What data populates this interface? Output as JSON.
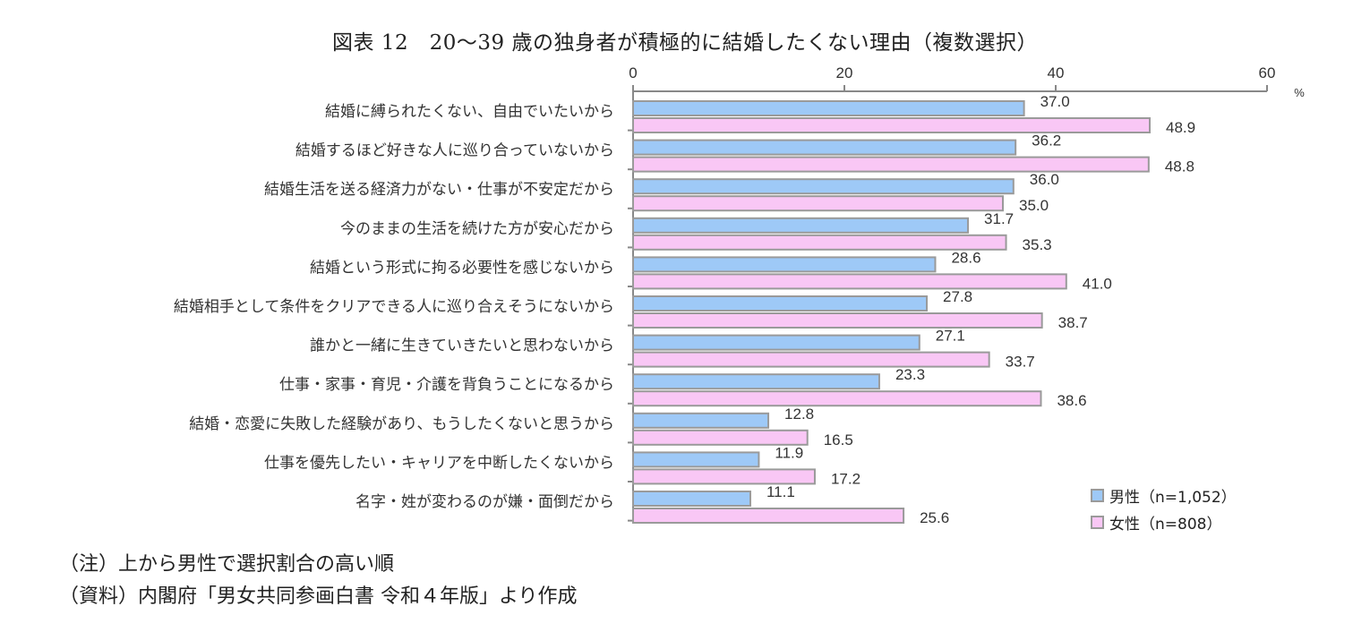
{
  "title": "図表 12　20～39 歳の独身者が積極的に結婚したくない理由（複数選択）",
  "notes": [
    "（注）上から男性で選択割合の高い順",
    "（資料）内閣府「男女共同参画白書 令和４年版」より作成"
  ],
  "colors": {
    "male": "#9ec9f7",
    "female": "#f9c7f5",
    "stroke": "#9a9a9a"
  },
  "chart_data": {
    "type": "bar",
    "orientation": "horizontal",
    "unit": "%",
    "xlim": [
      0,
      60
    ],
    "ticks": [
      0,
      20,
      40,
      60
    ],
    "grid": false,
    "legend_position": "bottom-right",
    "categories": [
      "結婚に縛られたくない、自由でいたいから",
      "結婚するほど好きな人に巡り合っていないから",
      "結婚生活を送る経済力がない・仕事が不安定だから",
      "今のままの生活を続けた方が安心だから",
      "結婚という形式に拘る必要性を感じないから",
      "結婚相手として条件をクリアできる人に巡り合えそうにないから",
      "誰かと一緒に生きていきたいと思わないから",
      "仕事・家事・育児・介護を背負うことになるから",
      "結婚・恋愛に失敗した経験があり、もうしたくないと思うから",
      "仕事を優先したい・キャリアを中断したくないから",
      "名字・姓が変わるのが嫌・面倒だから"
    ],
    "series": [
      {
        "name": "男性（n=1,052）",
        "values": [
          37.0,
          36.2,
          36.0,
          31.7,
          28.6,
          27.8,
          27.1,
          23.3,
          12.8,
          11.9,
          11.1
        ]
      },
      {
        "name": "女性（n=808）",
        "values": [
          48.9,
          48.8,
          35.0,
          35.3,
          41.0,
          38.7,
          33.7,
          38.6,
          16.5,
          17.2,
          25.6
        ]
      }
    ]
  }
}
